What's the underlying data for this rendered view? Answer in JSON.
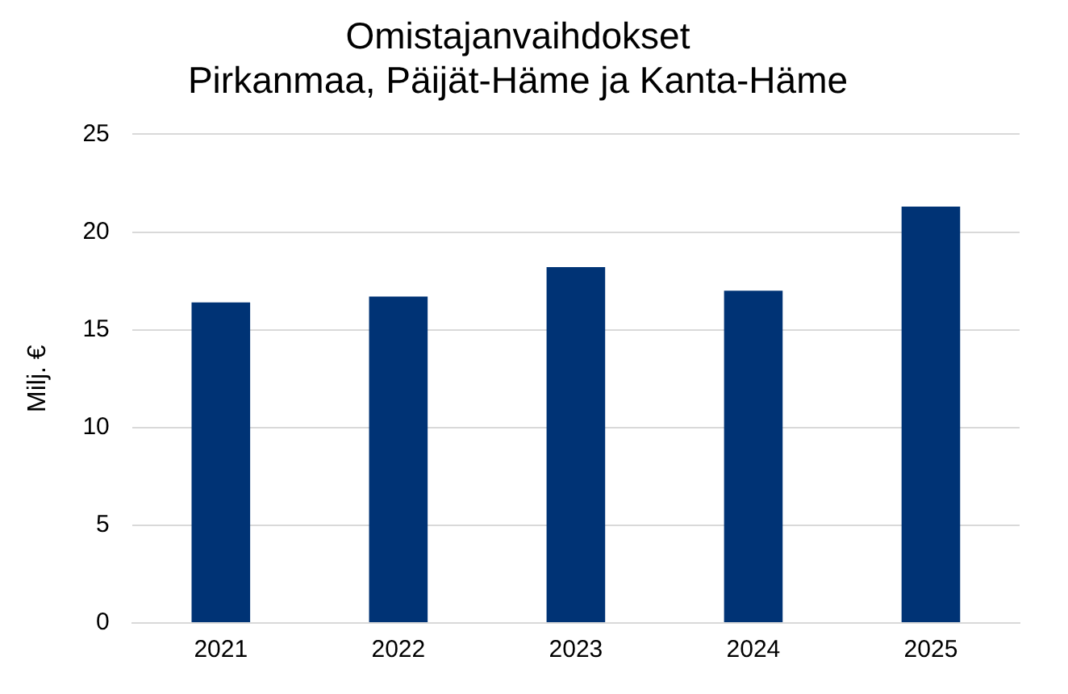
{
  "chart_data": {
    "type": "bar",
    "title": "Omistajanvaihdokset\nPirkanmaa, Päijät-Häme ja Kanta-Häme",
    "ylabel": "Milj. €",
    "categories": [
      "2021",
      "2022",
      "2023",
      "2024",
      "2025"
    ],
    "values": [
      16.4,
      16.7,
      18.2,
      17.0,
      21.3
    ],
    "color": "#003375",
    "ylim": [
      0,
      25
    ],
    "yticks": [
      0,
      5,
      10,
      15,
      20,
      25
    ],
    "grid": "y",
    "legend": false
  }
}
